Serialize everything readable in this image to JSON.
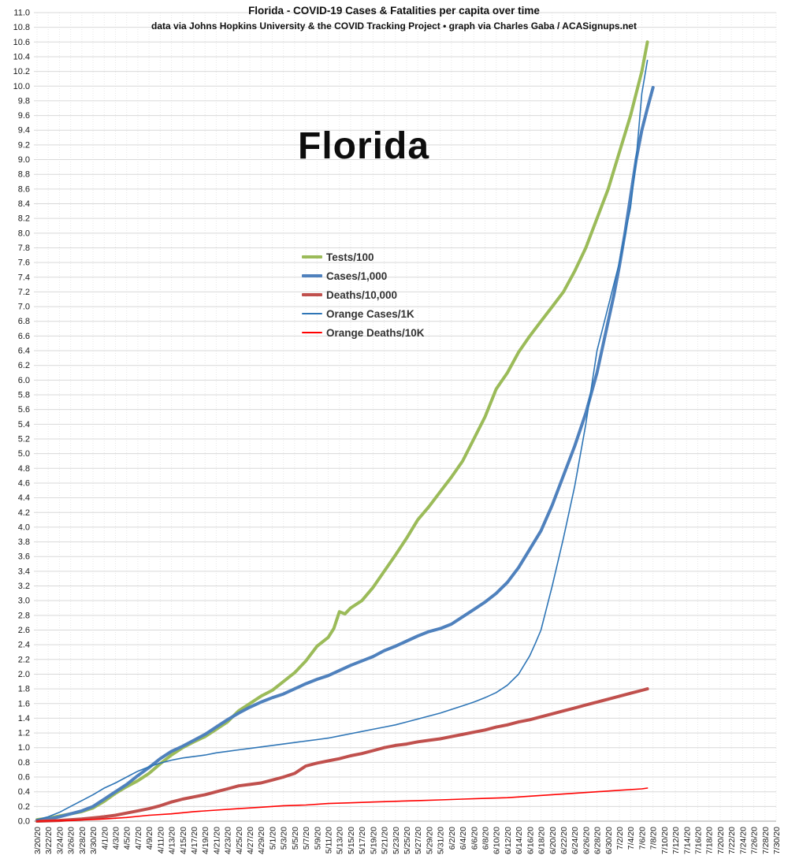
{
  "header": {
    "title": "Florida - COVID-19 Cases & Fatalities per capita over time",
    "subtitle": "data via Johns Hopkins University & the COVID Tracking Project • graph via Charles Gaba / ACASignups.net"
  },
  "state_label": "Florida",
  "chart_data": {
    "type": "line",
    "title": "Florida - COVID-19 Cases & Fatalities per capita over time",
    "background": "#ffffff",
    "grid": true,
    "legend_position": "overlay-center-left",
    "y_axis": {
      "min": 0,
      "max": 11,
      "step": 0.2,
      "label_format": "0.0"
    },
    "x_tick_labels": [
      "3/20/20",
      "3/22/20",
      "3/24/20",
      "3/26/20",
      "3/28/20",
      "3/30/20",
      "4/1/20",
      "4/3/20",
      "4/5/20",
      "4/7/20",
      "4/9/20",
      "4/11/20",
      "4/13/20",
      "4/15/20",
      "4/17/20",
      "4/19/20",
      "4/21/20",
      "4/23/20",
      "4/25/20",
      "4/27/20",
      "4/29/20",
      "5/1/20",
      "5/3/20",
      "5/5/20",
      "5/7/20",
      "5/9/20",
      "5/11/20",
      "5/13/20",
      "5/15/20",
      "5/17/20",
      "5/19/20",
      "5/21/20",
      "5/23/20",
      "5/25/20",
      "5/27/20",
      "5/29/20",
      "5/31/20",
      "6/2/20",
      "6/4/20",
      "6/6/20",
      "6/8/20",
      "6/10/20",
      "6/12/20",
      "6/14/20",
      "6/16/20",
      "6/18/20",
      "6/20/20",
      "6/22/20",
      "6/24/20",
      "6/26/20",
      "6/28/20",
      "6/30/20",
      "7/2/20",
      "7/4/20",
      "7/6/20",
      "7/8/20",
      "7/10/20",
      "7/12/20",
      "7/14/20",
      "7/16/20",
      "7/18/20",
      "7/20/20",
      "7/22/20",
      "7/24/20",
      "7/26/20",
      "7/28/20",
      "7/30/20"
    ],
    "series": [
      {
        "name": "Tests/100",
        "color": "#9BBB59",
        "width": 4,
        "points": [
          [
            "3/20",
            0.02
          ],
          [
            "3/22",
            0.04
          ],
          [
            "3/24",
            0.07
          ],
          [
            "3/26",
            0.1
          ],
          [
            "3/28",
            0.13
          ],
          [
            "3/30",
            0.18
          ],
          [
            "4/1",
            0.27
          ],
          [
            "4/3",
            0.38
          ],
          [
            "4/5",
            0.47
          ],
          [
            "4/7",
            0.55
          ],
          [
            "4/9",
            0.65
          ],
          [
            "4/11",
            0.78
          ],
          [
            "4/13",
            0.9
          ],
          [
            "4/15",
            1.0
          ],
          [
            "4/17",
            1.08
          ],
          [
            "4/19",
            1.15
          ],
          [
            "4/21",
            1.25
          ],
          [
            "4/23",
            1.35
          ],
          [
            "4/25",
            1.5
          ],
          [
            "4/27",
            1.6
          ],
          [
            "4/29",
            1.7
          ],
          [
            "5/1",
            1.78
          ],
          [
            "5/3",
            1.9
          ],
          [
            "5/5",
            2.02
          ],
          [
            "5/7",
            2.18
          ],
          [
            "5/9",
            2.38
          ],
          [
            "5/11",
            2.5
          ],
          [
            "5/12",
            2.62
          ],
          [
            "5/13",
            2.85
          ],
          [
            "5/14",
            2.82
          ],
          [
            "5/15",
            2.9
          ],
          [
            "5/17",
            3.0
          ],
          [
            "5/19",
            3.18
          ],
          [
            "5/21",
            3.4
          ],
          [
            "5/23",
            3.62
          ],
          [
            "5/25",
            3.85
          ],
          [
            "5/27",
            4.1
          ],
          [
            "5/29",
            4.28
          ],
          [
            "5/31",
            4.48
          ],
          [
            "6/2",
            4.68
          ],
          [
            "6/4",
            4.9
          ],
          [
            "6/6",
            5.2
          ],
          [
            "6/8",
            5.5
          ],
          [
            "6/10",
            5.88
          ],
          [
            "6/12",
            6.1
          ],
          [
            "6/14",
            6.38
          ],
          [
            "6/16",
            6.6
          ],
          [
            "6/18",
            6.8
          ],
          [
            "6/20",
            7.0
          ],
          [
            "6/22",
            7.2
          ],
          [
            "6/24",
            7.48
          ],
          [
            "6/26",
            7.8
          ],
          [
            "6/28",
            8.2
          ],
          [
            "6/30",
            8.6
          ],
          [
            "7/1",
            8.85
          ],
          [
            "7/2",
            9.1
          ],
          [
            "7/3",
            9.35
          ],
          [
            "7/4",
            9.6
          ],
          [
            "7/5",
            9.9
          ],
          [
            "7/6",
            10.2
          ],
          [
            "7/7",
            10.6
          ]
        ]
      },
      {
        "name": "Cases/1,000",
        "color": "#4F81BD",
        "width": 4,
        "points": [
          [
            "3/20",
            0.01
          ],
          [
            "3/22",
            0.03
          ],
          [
            "3/24",
            0.06
          ],
          [
            "3/26",
            0.1
          ],
          [
            "3/28",
            0.14
          ],
          [
            "3/30",
            0.2
          ],
          [
            "4/1",
            0.3
          ],
          [
            "4/3",
            0.4
          ],
          [
            "4/5",
            0.5
          ],
          [
            "4/7",
            0.62
          ],
          [
            "4/9",
            0.73
          ],
          [
            "4/11",
            0.85
          ],
          [
            "4/13",
            0.95
          ],
          [
            "4/15",
            1.02
          ],
          [
            "4/17",
            1.1
          ],
          [
            "4/19",
            1.18
          ],
          [
            "4/21",
            1.28
          ],
          [
            "4/23",
            1.38
          ],
          [
            "4/25",
            1.47
          ],
          [
            "4/27",
            1.55
          ],
          [
            "4/29",
            1.62
          ],
          [
            "5/1",
            1.68
          ],
          [
            "5/3",
            1.73
          ],
          [
            "5/5",
            1.8
          ],
          [
            "5/7",
            1.87
          ],
          [
            "5/9",
            1.93
          ],
          [
            "5/11",
            1.98
          ],
          [
            "5/13",
            2.05
          ],
          [
            "5/15",
            2.12
          ],
          [
            "5/17",
            2.18
          ],
          [
            "5/19",
            2.24
          ],
          [
            "5/21",
            2.32
          ],
          [
            "5/23",
            2.38
          ],
          [
            "5/25",
            2.45
          ],
          [
            "5/27",
            2.52
          ],
          [
            "5/29",
            2.58
          ],
          [
            "5/31",
            2.62
          ],
          [
            "6/2",
            2.68
          ],
          [
            "6/4",
            2.78
          ],
          [
            "6/6",
            2.88
          ],
          [
            "6/8",
            2.98
          ],
          [
            "6/10",
            3.1
          ],
          [
            "6/12",
            3.25
          ],
          [
            "6/14",
            3.45
          ],
          [
            "6/16",
            3.7
          ],
          [
            "6/18",
            3.95
          ],
          [
            "6/20",
            4.3
          ],
          [
            "6/22",
            4.7
          ],
          [
            "6/24",
            5.1
          ],
          [
            "6/26",
            5.55
          ],
          [
            "6/28",
            6.1
          ],
          [
            "6/30",
            6.8
          ],
          [
            "7/1",
            7.15
          ],
          [
            "7/2",
            7.55
          ],
          [
            "7/3",
            8.0
          ],
          [
            "7/4",
            8.5
          ],
          [
            "7/5",
            9.0
          ],
          [
            "7/6",
            9.4
          ],
          [
            "7/7",
            9.7
          ],
          [
            "7/8",
            9.98
          ]
        ]
      },
      {
        "name": "Deaths/10,000",
        "color": "#C0504D",
        "width": 4,
        "points": [
          [
            "3/20",
            0.0
          ],
          [
            "3/24",
            0.01
          ],
          [
            "3/28",
            0.03
          ],
          [
            "4/1",
            0.06
          ],
          [
            "4/3",
            0.08
          ],
          [
            "4/5",
            0.11
          ],
          [
            "4/7",
            0.14
          ],
          [
            "4/9",
            0.17
          ],
          [
            "4/11",
            0.21
          ],
          [
            "4/13",
            0.26
          ],
          [
            "4/15",
            0.3
          ],
          [
            "4/17",
            0.33
          ],
          [
            "4/19",
            0.36
          ],
          [
            "4/21",
            0.4
          ],
          [
            "4/23",
            0.44
          ],
          [
            "4/25",
            0.48
          ],
          [
            "4/27",
            0.5
          ],
          [
            "4/29",
            0.52
          ],
          [
            "5/1",
            0.56
          ],
          [
            "5/3",
            0.6
          ],
          [
            "5/5",
            0.65
          ],
          [
            "5/7",
            0.75
          ],
          [
            "5/9",
            0.79
          ],
          [
            "5/11",
            0.82
          ],
          [
            "5/13",
            0.85
          ],
          [
            "5/15",
            0.89
          ],
          [
            "5/17",
            0.92
          ],
          [
            "5/19",
            0.96
          ],
          [
            "5/21",
            1.0
          ],
          [
            "5/23",
            1.03
          ],
          [
            "5/25",
            1.05
          ],
          [
            "5/27",
            1.08
          ],
          [
            "5/29",
            1.1
          ],
          [
            "5/31",
            1.12
          ],
          [
            "6/2",
            1.15
          ],
          [
            "6/4",
            1.18
          ],
          [
            "6/6",
            1.21
          ],
          [
            "6/8",
            1.24
          ],
          [
            "6/10",
            1.28
          ],
          [
            "6/12",
            1.31
          ],
          [
            "6/14",
            1.35
          ],
          [
            "6/16",
            1.38
          ],
          [
            "6/18",
            1.42
          ],
          [
            "6/20",
            1.46
          ],
          [
            "6/22",
            1.5
          ],
          [
            "6/24",
            1.54
          ],
          [
            "6/26",
            1.58
          ],
          [
            "6/28",
            1.62
          ],
          [
            "6/30",
            1.66
          ],
          [
            "7/2",
            1.7
          ],
          [
            "7/4",
            1.74
          ],
          [
            "7/6",
            1.78
          ],
          [
            "7/7",
            1.8
          ]
        ]
      },
      {
        "name": "Orange Cases/1K",
        "color": "#2E75B6",
        "width": 1.6,
        "points": [
          [
            "3/20",
            0.02
          ],
          [
            "3/22",
            0.06
          ],
          [
            "3/24",
            0.12
          ],
          [
            "3/26",
            0.2
          ],
          [
            "3/28",
            0.28
          ],
          [
            "3/30",
            0.36
          ],
          [
            "4/1",
            0.45
          ],
          [
            "4/3",
            0.52
          ],
          [
            "4/5",
            0.6
          ],
          [
            "4/7",
            0.68
          ],
          [
            "4/9",
            0.74
          ],
          [
            "4/11",
            0.79
          ],
          [
            "4/13",
            0.83
          ],
          [
            "4/15",
            0.86
          ],
          [
            "4/17",
            0.88
          ],
          [
            "4/19",
            0.9
          ],
          [
            "4/21",
            0.93
          ],
          [
            "4/23",
            0.95
          ],
          [
            "4/25",
            0.97
          ],
          [
            "4/27",
            0.99
          ],
          [
            "4/29",
            1.01
          ],
          [
            "5/1",
            1.03
          ],
          [
            "5/3",
            1.05
          ],
          [
            "5/5",
            1.07
          ],
          [
            "5/7",
            1.09
          ],
          [
            "5/9",
            1.11
          ],
          [
            "5/11",
            1.13
          ],
          [
            "5/13",
            1.16
          ],
          [
            "5/15",
            1.19
          ],
          [
            "5/17",
            1.22
          ],
          [
            "5/19",
            1.25
          ],
          [
            "5/21",
            1.28
          ],
          [
            "5/23",
            1.31
          ],
          [
            "5/25",
            1.35
          ],
          [
            "5/27",
            1.39
          ],
          [
            "5/29",
            1.43
          ],
          [
            "5/31",
            1.47
          ],
          [
            "6/2",
            1.52
          ],
          [
            "6/4",
            1.57
          ],
          [
            "6/6",
            1.62
          ],
          [
            "6/8",
            1.68
          ],
          [
            "6/10",
            1.75
          ],
          [
            "6/12",
            1.85
          ],
          [
            "6/14",
            2.0
          ],
          [
            "6/16",
            2.25
          ],
          [
            "6/17",
            2.42
          ],
          [
            "6/18",
            2.6
          ],
          [
            "6/20",
            3.2
          ],
          [
            "6/22",
            3.85
          ],
          [
            "6/24",
            4.55
          ],
          [
            "6/26",
            5.4
          ],
          [
            "6/28",
            6.4
          ],
          [
            "6/30",
            7.0
          ],
          [
            "7/2",
            7.6
          ],
          [
            "7/4",
            8.35
          ],
          [
            "7/5",
            9.0
          ],
          [
            "7/6",
            9.9
          ],
          [
            "7/7",
            10.35
          ]
        ]
      },
      {
        "name": "Orange Deaths/10K",
        "color": "#FF0000",
        "width": 1.6,
        "points": [
          [
            "3/20",
            0.0
          ],
          [
            "3/26",
            0.01
          ],
          [
            "4/1",
            0.03
          ],
          [
            "4/5",
            0.05
          ],
          [
            "4/9",
            0.08
          ],
          [
            "4/13",
            0.1
          ],
          [
            "4/17",
            0.13
          ],
          [
            "4/21",
            0.15
          ],
          [
            "4/25",
            0.17
          ],
          [
            "4/29",
            0.19
          ],
          [
            "5/3",
            0.21
          ],
          [
            "5/7",
            0.22
          ],
          [
            "5/11",
            0.24
          ],
          [
            "5/15",
            0.25
          ],
          [
            "5/19",
            0.26
          ],
          [
            "5/23",
            0.27
          ],
          [
            "5/27",
            0.28
          ],
          [
            "5/31",
            0.29
          ],
          [
            "6/4",
            0.3
          ],
          [
            "6/8",
            0.31
          ],
          [
            "6/12",
            0.32
          ],
          [
            "6/16",
            0.34
          ],
          [
            "6/20",
            0.36
          ],
          [
            "6/24",
            0.38
          ],
          [
            "6/28",
            0.4
          ],
          [
            "7/2",
            0.42
          ],
          [
            "7/6",
            0.44
          ],
          [
            "7/7",
            0.45
          ]
        ]
      }
    ]
  }
}
